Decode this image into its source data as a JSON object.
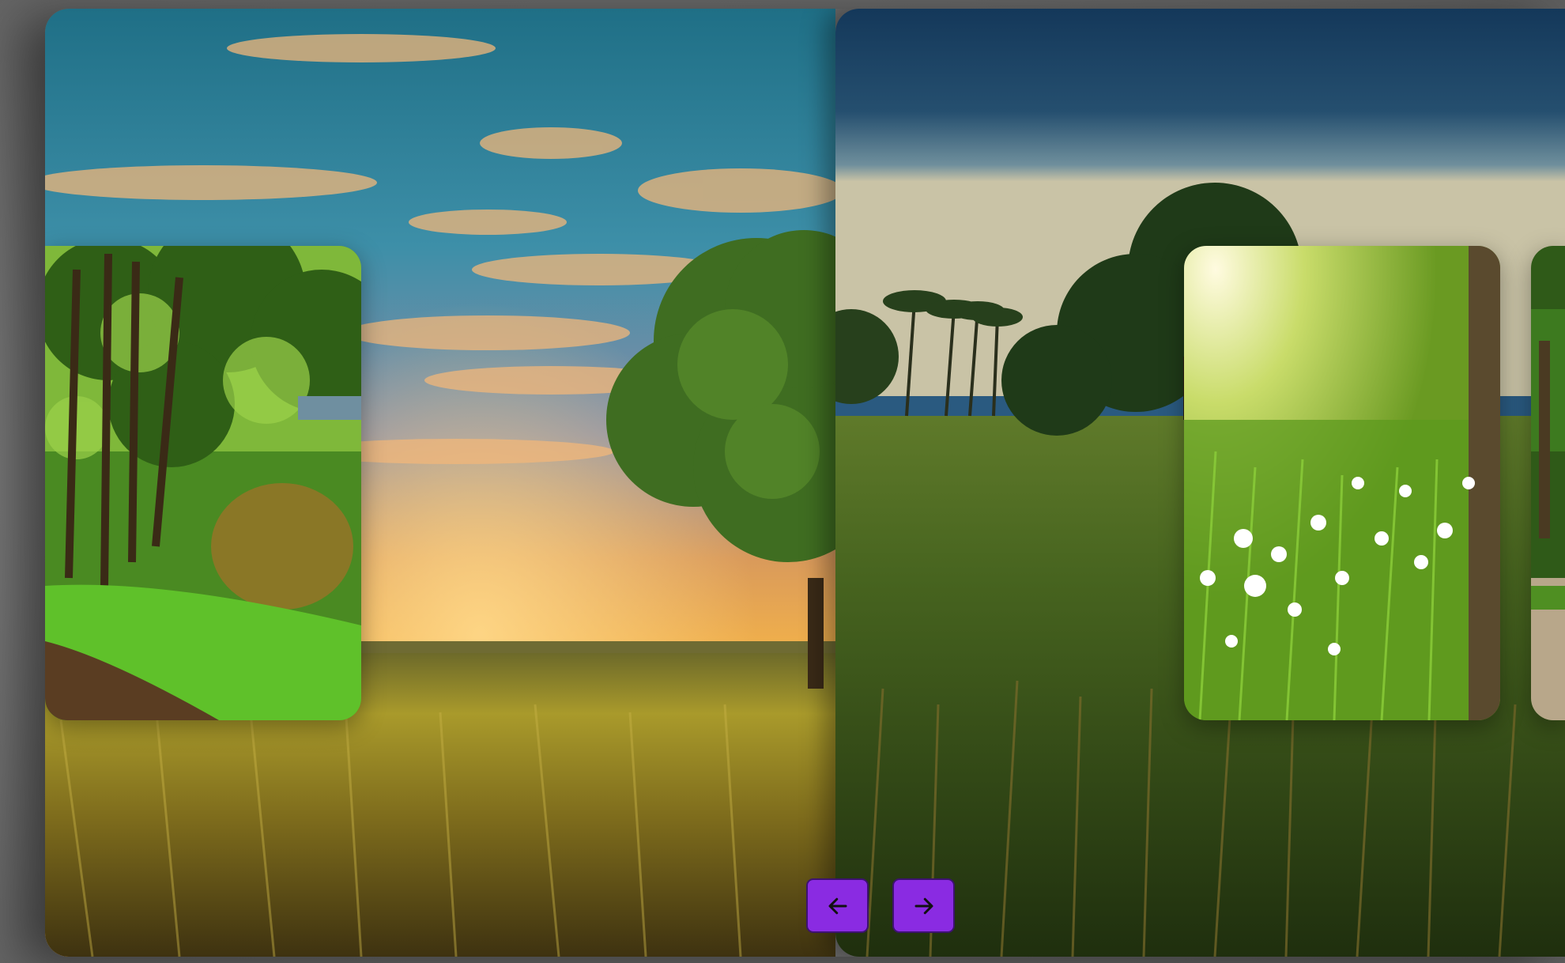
{
  "slider": {
    "background_slides": [
      {
        "label": "sunset-wheat-field"
      },
      {
        "label": "palm-grass-field"
      }
    ],
    "cards": [
      {
        "label": "forest-path"
      },
      {
        "label": "white-flowers-meadow"
      },
      {
        "label": "garden-path"
      }
    ],
    "controls": {
      "prev_icon": "arrow-left-icon",
      "next_icon": "arrow-right-icon"
    }
  },
  "colors": {
    "button_bg": "#8a2be2",
    "button_border": "#3d1270",
    "page_bg": "#7a7a7a"
  }
}
